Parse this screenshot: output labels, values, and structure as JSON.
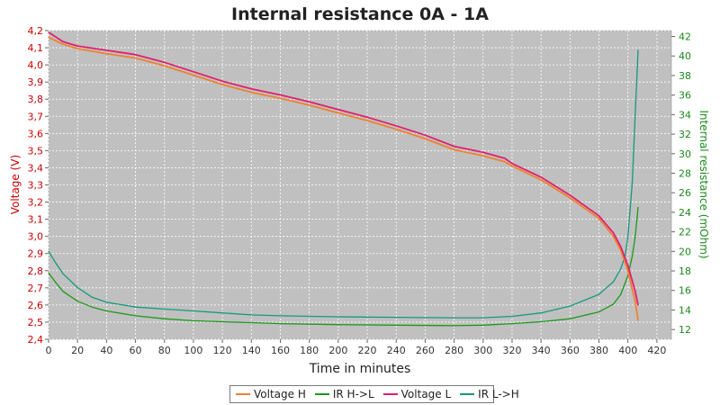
{
  "chart_data": {
    "type": "line",
    "title": "Internal resistance  0A - 1A",
    "xlabel": "Time in minutes",
    "ylabel_left": "Voltage (V)",
    "ylabel_right": "Internal resistance (mOhm)",
    "xlim": [
      0,
      430
    ],
    "ylim_left": [
      2.4,
      4.2
    ],
    "ylim_right": [
      11.0,
      42.6
    ],
    "x_ticks": [
      0,
      20,
      40,
      60,
      80,
      100,
      120,
      140,
      160,
      180,
      200,
      220,
      240,
      260,
      280,
      300,
      320,
      340,
      360,
      380,
      400,
      420
    ],
    "y_ticks_left": [
      "2,4",
      "2,5",
      "2,6",
      "2,7",
      "2,8",
      "2,9",
      "3,0",
      "3,1",
      "3,2",
      "3,3",
      "3,4",
      "3,5",
      "3,6",
      "3,7",
      "3,8",
      "3,9",
      "4,0",
      "4,1",
      "4,2"
    ],
    "y_ticks_right": [
      12,
      14,
      16,
      18,
      20,
      22,
      24,
      26,
      28,
      30,
      32,
      34,
      36,
      38,
      40,
      42
    ],
    "grid": true,
    "legend_position": "bottom",
    "colors": {
      "voltage_h": "#f08030",
      "ir_hl": "#1a9a1a",
      "voltage_l": "#e0206f",
      "ir_lh": "#159a7a",
      "left_axis": "#cc0000",
      "right_axis": "#1a8a1a",
      "plot_bg": "#c0c0c0"
    },
    "series": [
      {
        "name": "Voltage H",
        "axis": "left",
        "x": [
          0,
          10,
          20,
          40,
          60,
          80,
          100,
          120,
          140,
          160,
          180,
          200,
          220,
          240,
          260,
          280,
          300,
          315,
          320,
          340,
          360,
          380,
          390,
          395,
          400,
          405,
          407
        ],
        "values": [
          4.16,
          4.12,
          4.095,
          4.065,
          4.04,
          3.995,
          3.94,
          3.885,
          3.84,
          3.805,
          3.765,
          3.72,
          3.675,
          3.625,
          3.57,
          3.505,
          3.47,
          3.435,
          3.41,
          3.33,
          3.225,
          3.105,
          3.0,
          2.92,
          2.8,
          2.62,
          2.51
        ]
      },
      {
        "name": "IR H->L",
        "axis": "right",
        "x": [
          0,
          5,
          10,
          20,
          30,
          40,
          60,
          80,
          100,
          120,
          140,
          160,
          200,
          240,
          280,
          300,
          320,
          340,
          360,
          380,
          390,
          395,
          400,
          403,
          405,
          407
        ],
        "values": [
          17.8,
          16.8,
          15.9,
          14.9,
          14.3,
          13.9,
          13.4,
          13.1,
          12.9,
          12.8,
          12.7,
          12.6,
          12.5,
          12.45,
          12.4,
          12.45,
          12.6,
          12.8,
          13.1,
          13.8,
          14.6,
          15.6,
          17.5,
          19.5,
          21.5,
          24.5
        ]
      },
      {
        "name": "Voltage L",
        "axis": "left",
        "x": [
          0,
          10,
          20,
          40,
          60,
          80,
          100,
          120,
          140,
          160,
          180,
          200,
          220,
          240,
          260,
          280,
          300,
          315,
          320,
          340,
          360,
          380,
          390,
          395,
          400,
          405,
          407
        ],
        "values": [
          4.19,
          4.135,
          4.11,
          4.085,
          4.06,
          4.015,
          3.96,
          3.905,
          3.86,
          3.825,
          3.785,
          3.74,
          3.695,
          3.645,
          3.59,
          3.525,
          3.49,
          3.455,
          3.425,
          3.345,
          3.24,
          3.12,
          3.02,
          2.94,
          2.83,
          2.68,
          2.6
        ]
      },
      {
        "name": "IR L->H",
        "axis": "right",
        "x": [
          0,
          5,
          10,
          20,
          30,
          40,
          60,
          80,
          100,
          120,
          140,
          160,
          200,
          240,
          280,
          300,
          320,
          340,
          360,
          380,
          390,
          395,
          398,
          400,
          403,
          405,
          407
        ],
        "values": [
          20.0,
          18.8,
          17.7,
          16.3,
          15.3,
          14.8,
          14.3,
          14.1,
          13.9,
          13.7,
          13.5,
          13.4,
          13.3,
          13.25,
          13.2,
          13.2,
          13.35,
          13.7,
          14.4,
          15.6,
          16.9,
          18.2,
          19.5,
          21.5,
          27.0,
          34.0,
          40.6
        ]
      }
    ]
  }
}
